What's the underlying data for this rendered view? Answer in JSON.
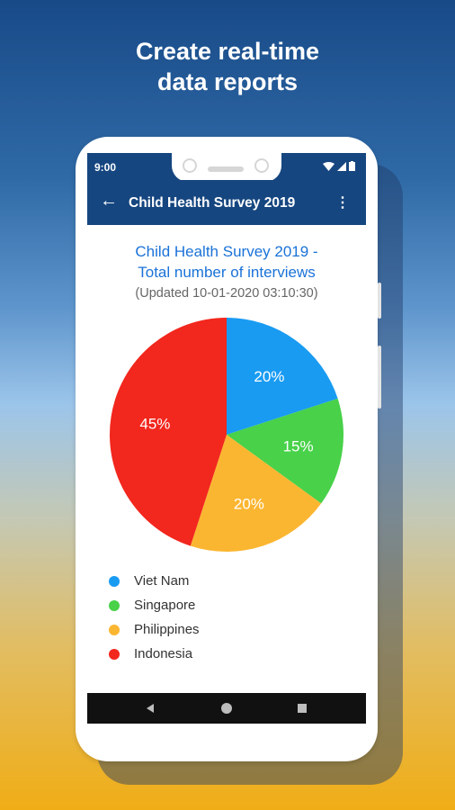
{
  "headline": {
    "line1": "Create real-time",
    "line2": "data reports"
  },
  "status_bar": {
    "time": "9:00"
  },
  "app_bar": {
    "back_icon": "arrow-back-icon",
    "title": "Child Health Survey 2019",
    "menu_icon": "more-vert-icon"
  },
  "report": {
    "title_line1": "Child Health Survey 2019 -",
    "title_line2": "Total number of interviews",
    "updated": "(Updated 10-01-2020   03:10:30)"
  },
  "chart_data": {
    "type": "pie",
    "title": "Child Health Survey 2019 - Total number of interviews",
    "categories": [
      "Viet Nam",
      "Singapore",
      "Philippines",
      "Indonesia"
    ],
    "values": [
      20,
      15,
      20,
      45
    ],
    "labels": [
      "20%",
      "15%",
      "20%",
      "45%"
    ],
    "colors": [
      "#199bf2",
      "#48d149",
      "#fbb631",
      "#f2271d"
    ],
    "legend": "bottom-left"
  },
  "nav_bar": {
    "back": "nav-back-icon",
    "home": "nav-home-icon",
    "recents": "nav-recents-icon"
  }
}
